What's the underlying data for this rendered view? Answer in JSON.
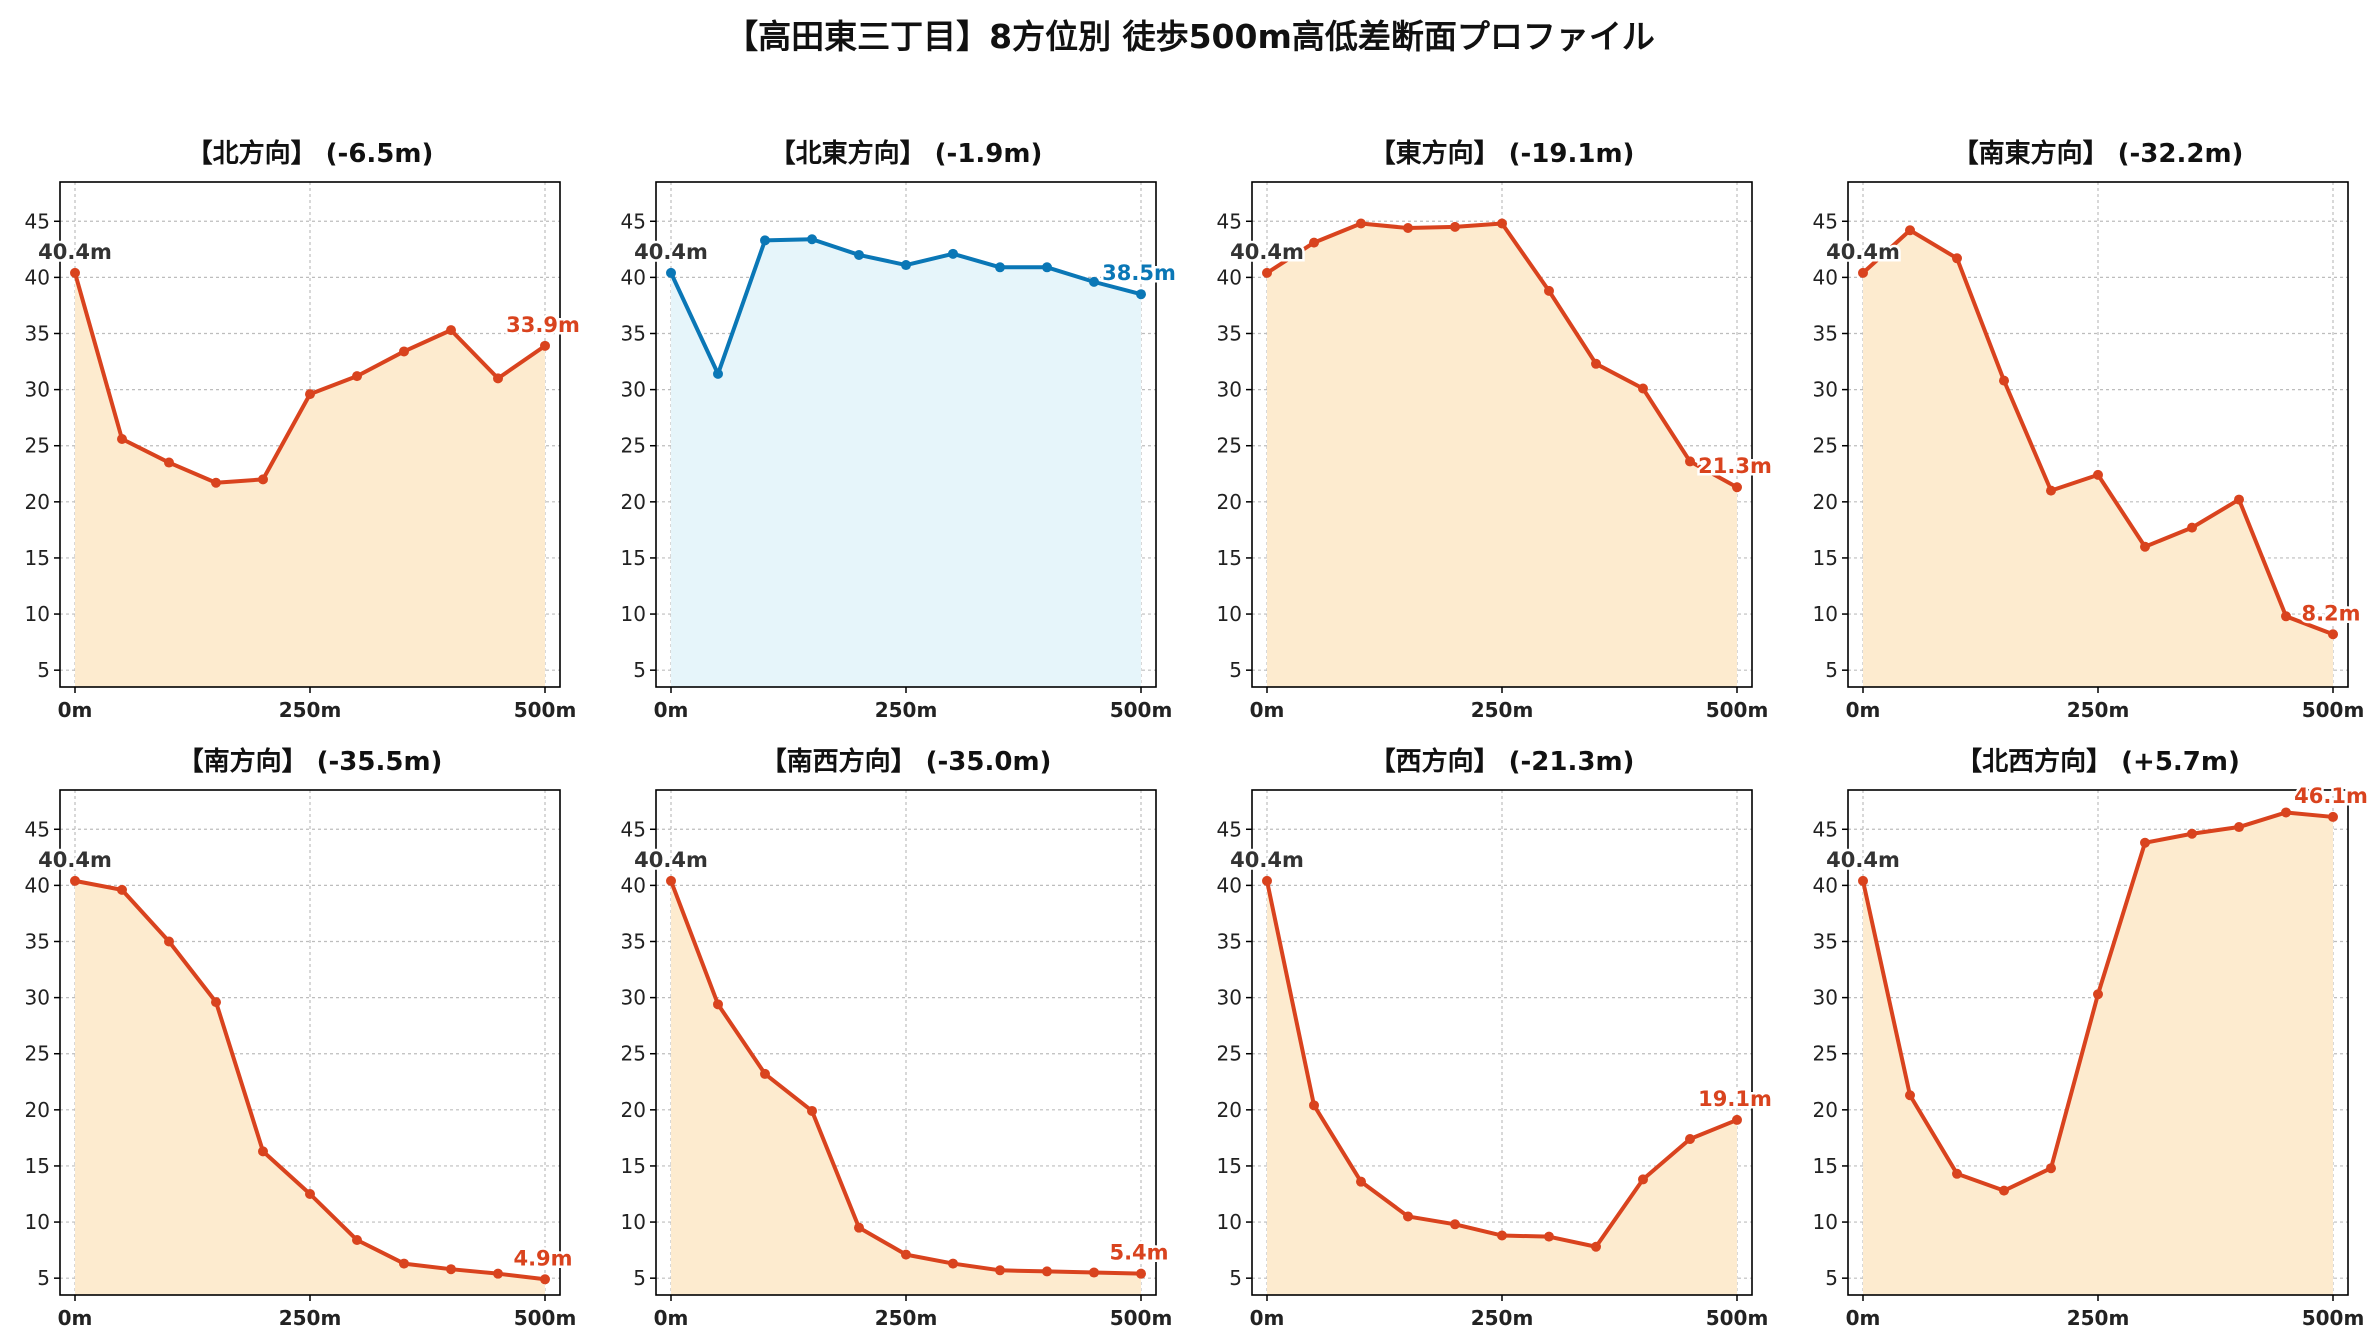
{
  "title": "【高田東三丁目】8方位別 徒歩500m高低差断面プロファイル",
  "colors": {
    "down": "#d9431e",
    "down_fill": "#fdebcf",
    "up": "#0a77b6",
    "up_fill": "#e6f5fa",
    "start_label": "#333333"
  },
  "chart_data": [
    {
      "type": "area",
      "title": "【北方向】 (-6.5m)",
      "x": [
        0,
        50,
        100,
        150,
        200,
        250,
        300,
        350,
        400,
        450,
        500
      ],
      "y": [
        40.4,
        25.6,
        23.5,
        21.7,
        22.0,
        29.6,
        31.2,
        33.4,
        35.3,
        31.0,
        33.9
      ],
      "start_label": "40.4m",
      "end_label": "33.9m",
      "style": "down",
      "xlim": [
        0,
        500
      ],
      "ylim": [
        3.5,
        48.5
      ],
      "xticks": [
        0,
        250,
        500
      ],
      "xtick_labels": [
        "0m",
        "250m",
        "500m"
      ],
      "yticks": [
        5,
        10,
        15,
        20,
        25,
        30,
        35,
        40,
        45
      ],
      "grid": true
    },
    {
      "type": "area",
      "title": "【北東方向】 (-1.9m)",
      "x": [
        0,
        50,
        100,
        150,
        200,
        250,
        300,
        350,
        400,
        450,
        500
      ],
      "y": [
        40.4,
        31.4,
        43.3,
        43.4,
        42.0,
        41.1,
        42.1,
        40.9,
        40.9,
        39.6,
        38.5
      ],
      "start_label": "40.4m",
      "end_label": "38.5m",
      "style": "up",
      "xlim": [
        0,
        500
      ],
      "ylim": [
        3.5,
        48.5
      ],
      "xticks": [
        0,
        250,
        500
      ],
      "xtick_labels": [
        "0m",
        "250m",
        "500m"
      ],
      "yticks": [
        5,
        10,
        15,
        20,
        25,
        30,
        35,
        40,
        45
      ],
      "grid": true
    },
    {
      "type": "area",
      "title": "【東方向】 (-19.1m)",
      "x": [
        0,
        50,
        100,
        150,
        200,
        250,
        300,
        350,
        400,
        450,
        500
      ],
      "y": [
        40.4,
        43.1,
        44.8,
        44.4,
        44.5,
        44.8,
        38.8,
        32.3,
        30.1,
        23.6,
        21.3
      ],
      "start_label": "40.4m",
      "end_label": "21.3m",
      "style": "down",
      "xlim": [
        0,
        500
      ],
      "ylim": [
        3.5,
        48.5
      ],
      "xticks": [
        0,
        250,
        500
      ],
      "xtick_labels": [
        "0m",
        "250m",
        "500m"
      ],
      "yticks": [
        5,
        10,
        15,
        20,
        25,
        30,
        35,
        40,
        45
      ],
      "grid": true
    },
    {
      "type": "area",
      "title": "【南東方向】 (-32.2m)",
      "x": [
        0,
        50,
        100,
        150,
        200,
        250,
        300,
        350,
        400,
        450,
        500
      ],
      "y": [
        40.4,
        44.2,
        41.7,
        30.8,
        21.0,
        22.4,
        16.0,
        17.7,
        20.2,
        9.8,
        8.2
      ],
      "start_label": "40.4m",
      "end_label": "8.2m",
      "style": "down",
      "xlim": [
        0,
        500
      ],
      "ylim": [
        3.5,
        48.5
      ],
      "xticks": [
        0,
        250,
        500
      ],
      "xtick_labels": [
        "0m",
        "250m",
        "500m"
      ],
      "yticks": [
        5,
        10,
        15,
        20,
        25,
        30,
        35,
        40,
        45
      ],
      "grid": true
    },
    {
      "type": "area",
      "title": "【南方向】 (-35.5m)",
      "x": [
        0,
        50,
        100,
        150,
        200,
        250,
        300,
        350,
        400,
        450,
        500
      ],
      "y": [
        40.4,
        39.6,
        35.0,
        29.6,
        16.3,
        12.5,
        8.4,
        6.3,
        5.8,
        5.4,
        4.9
      ],
      "start_label": "40.4m",
      "end_label": "4.9m",
      "style": "down",
      "xlim": [
        0,
        500
      ],
      "ylim": [
        3.5,
        48.5
      ],
      "xticks": [
        0,
        250,
        500
      ],
      "xtick_labels": [
        "0m",
        "250m",
        "500m"
      ],
      "yticks": [
        5,
        10,
        15,
        20,
        25,
        30,
        35,
        40,
        45
      ],
      "grid": true
    },
    {
      "type": "area",
      "title": "【南西方向】 (-35.0m)",
      "x": [
        0,
        50,
        100,
        150,
        200,
        250,
        300,
        350,
        400,
        450,
        500
      ],
      "y": [
        40.4,
        29.4,
        23.2,
        19.9,
        9.5,
        7.1,
        6.3,
        5.7,
        5.6,
        5.5,
        5.4
      ],
      "start_label": "40.4m",
      "end_label": "5.4m",
      "style": "down",
      "xlim": [
        0,
        500
      ],
      "ylim": [
        3.5,
        48.5
      ],
      "xticks": [
        0,
        250,
        500
      ],
      "xtick_labels": [
        "0m",
        "250m",
        "500m"
      ],
      "yticks": [
        5,
        10,
        15,
        20,
        25,
        30,
        35,
        40,
        45
      ],
      "grid": true
    },
    {
      "type": "area",
      "title": "【西方向】 (-21.3m)",
      "x": [
        0,
        50,
        100,
        150,
        200,
        250,
        300,
        350,
        400,
        450,
        500
      ],
      "y": [
        40.4,
        20.4,
        13.6,
        10.5,
        9.8,
        8.8,
        8.7,
        7.8,
        13.8,
        17.4,
        19.1
      ],
      "start_label": "40.4m",
      "end_label": "19.1m",
      "style": "down",
      "xlim": [
        0,
        500
      ],
      "ylim": [
        3.5,
        48.5
      ],
      "xticks": [
        0,
        250,
        500
      ],
      "xtick_labels": [
        "0m",
        "250m",
        "500m"
      ],
      "yticks": [
        5,
        10,
        15,
        20,
        25,
        30,
        35,
        40,
        45
      ],
      "grid": true
    },
    {
      "type": "area",
      "title": "【北西方向】 (+5.7m)",
      "x": [
        0,
        50,
        100,
        150,
        200,
        250,
        300,
        350,
        400,
        450,
        500
      ],
      "y": [
        40.4,
        21.3,
        14.3,
        12.8,
        14.8,
        30.3,
        43.8,
        44.6,
        45.2,
        46.5,
        46.1
      ],
      "start_label": "40.4m",
      "end_label": "46.1m",
      "style": "down",
      "xlim": [
        0,
        500
      ],
      "ylim": [
        3.5,
        48.5
      ],
      "xticks": [
        0,
        250,
        500
      ],
      "xtick_labels": [
        "0m",
        "250m",
        "500m"
      ],
      "yticks": [
        5,
        10,
        15,
        20,
        25,
        30,
        35,
        40,
        45
      ],
      "grid": true
    }
  ]
}
